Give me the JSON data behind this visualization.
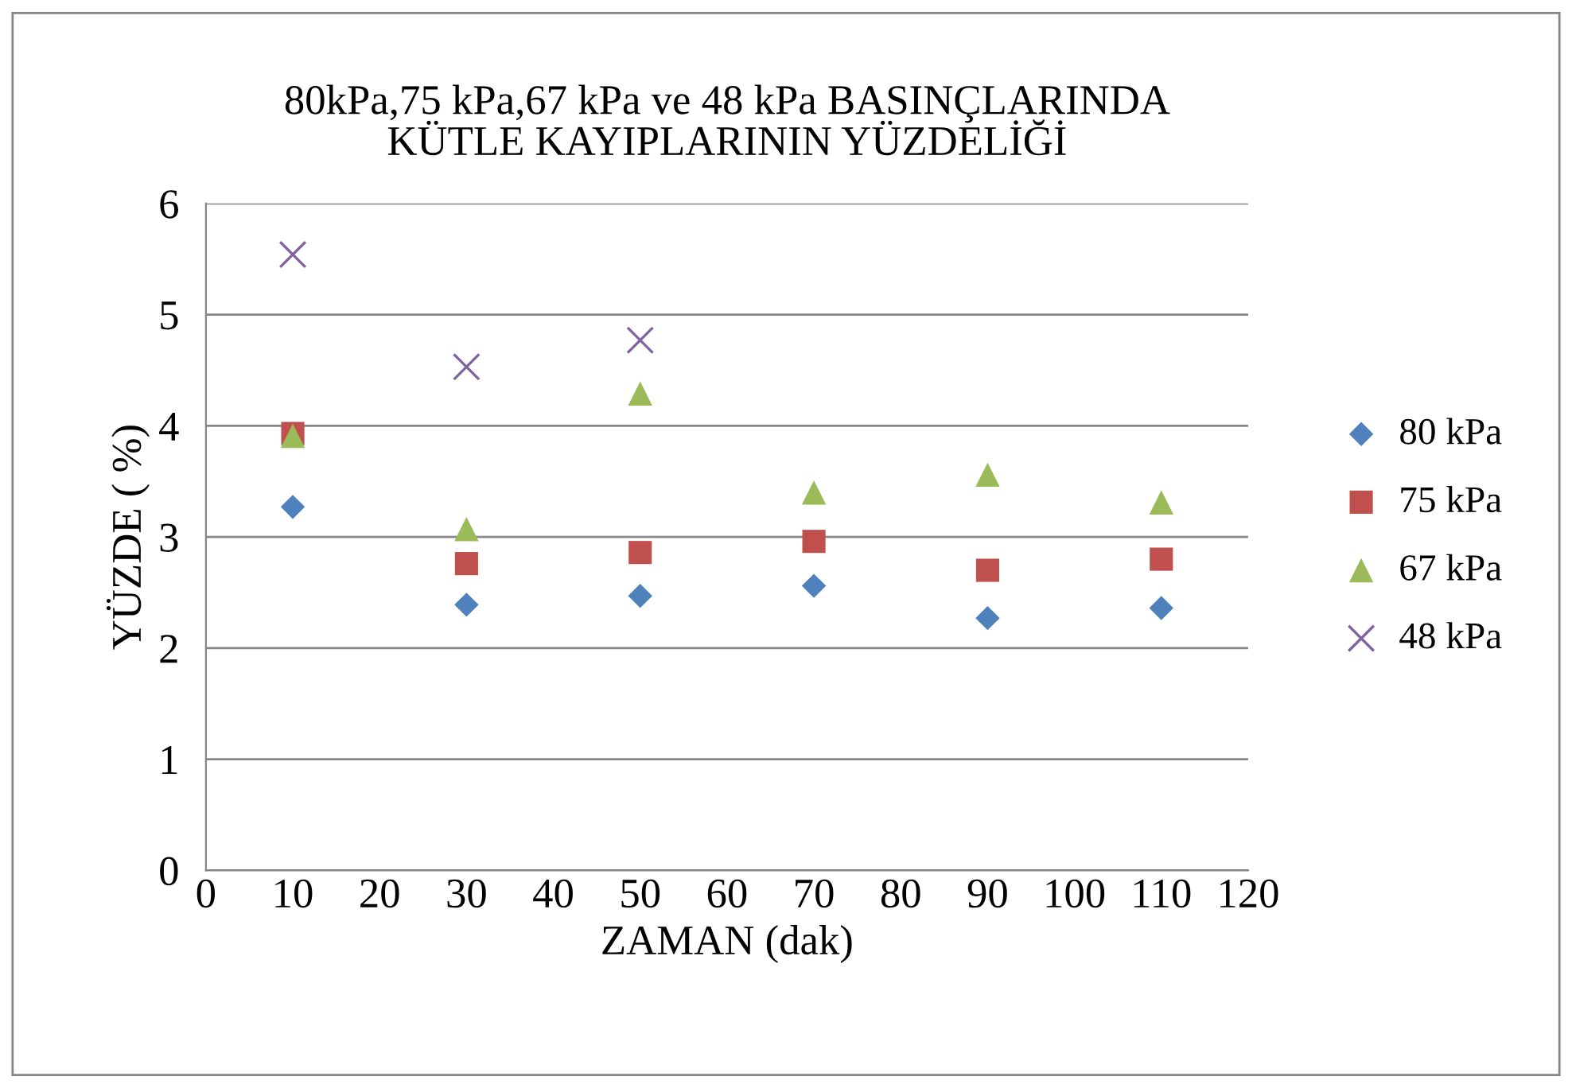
{
  "chart_data": {
    "type": "scatter",
    "title": "80kPa,75 kPa,67 kPa ve 48 kPa BASINÇLARINDA\nKÜTLE KAYIPLARININ YÜZDELİĞİ",
    "xlabel": "ZAMAN (dak)",
    "ylabel": "YÜZDE ( %)",
    "x": [
      10,
      30,
      50,
      70,
      90,
      110
    ],
    "series": [
      {
        "name": "80 kPa",
        "color": "#4f81bd",
        "marker": "diamond",
        "values": [
          3.27,
          2.39,
          2.47,
          2.56,
          2.27,
          2.36
        ]
      },
      {
        "name": "75 kPa",
        "color": "#c0504d",
        "marker": "square",
        "values": [
          3.93,
          2.76,
          2.86,
          2.96,
          2.7,
          2.8
        ]
      },
      {
        "name": "67 kPa",
        "color": "#9bbb59",
        "marker": "triangle",
        "values": [
          3.91,
          3.07,
          4.29,
          3.4,
          3.56,
          3.31
        ]
      },
      {
        "name": "48 kPa",
        "color": "#8064a2",
        "marker": "cross",
        "values": [
          5.54,
          4.53,
          4.77,
          null,
          null,
          null
        ]
      }
    ],
    "xlim": [
      0,
      120
    ],
    "xticks": [
      0,
      10,
      20,
      30,
      40,
      50,
      60,
      70,
      80,
      90,
      100,
      110,
      120
    ],
    "ylim": [
      0,
      6
    ],
    "yticks": [
      0,
      1,
      2,
      3,
      4,
      5,
      6
    ],
    "grid": "y",
    "legend": "right"
  }
}
